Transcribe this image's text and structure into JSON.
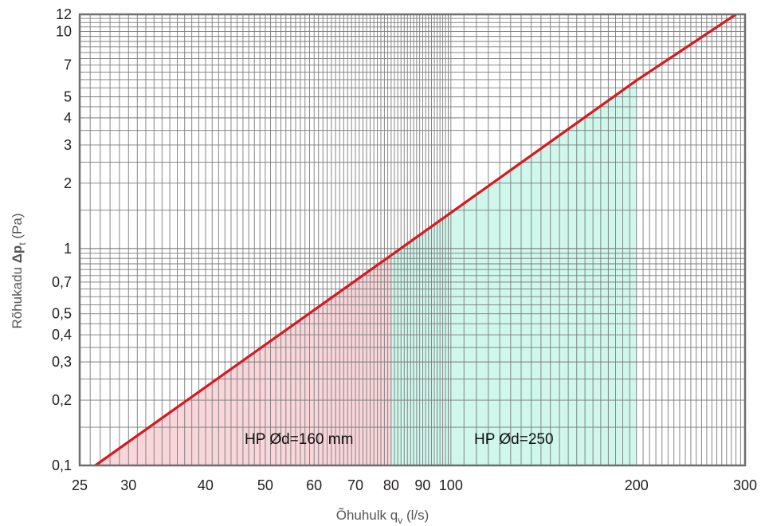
{
  "chart_data": {
    "type": "line",
    "xlabel": "Õhuhulk q",
    "xlabel_sub": "v",
    "xlabel_unit": " (l/s)",
    "ylabel_pre": "Rõhukadu ",
    "ylabel_delta": "Δp",
    "ylabel_sub": "t",
    "ylabel_unit": " (Pa)",
    "x_scale": "log",
    "y_scale": "log",
    "xlim": [
      25,
      300
    ],
    "ylim": [
      0.1,
      12
    ],
    "grid": true,
    "x_ticks": [
      {
        "value": 25,
        "label": "25"
      },
      {
        "value": 30,
        "label": "30"
      },
      {
        "value": 40,
        "label": "40"
      },
      {
        "value": 50,
        "label": "50"
      },
      {
        "value": 60,
        "label": "60"
      },
      {
        "value": 70,
        "label": "70"
      },
      {
        "value": 80,
        "label": "80"
      },
      {
        "value": 90,
        "label": "90"
      },
      {
        "value": 100,
        "label": "100"
      },
      {
        "value": 200,
        "label": "200"
      },
      {
        "value": 300,
        "label": "300"
      }
    ],
    "y_ticks": [
      {
        "value": 0.1,
        "label": "0,1"
      },
      {
        "value": 0.2,
        "label": "0,2"
      },
      {
        "value": 0.3,
        "label": "0,3"
      },
      {
        "value": 0.4,
        "label": "0,4"
      },
      {
        "value": 0.5,
        "label": "0,5"
      },
      {
        "value": 0.7,
        "label": "0,7"
      },
      {
        "value": 1,
        "label": "1"
      },
      {
        "value": 2,
        "label": "2"
      },
      {
        "value": 3,
        "label": "3"
      },
      {
        "value": 4,
        "label": "4"
      },
      {
        "value": 5,
        "label": "5"
      },
      {
        "value": 7,
        "label": "7"
      },
      {
        "value": 10,
        "label": "10"
      },
      {
        "value": 12,
        "label": "12"
      }
    ],
    "series": [
      {
        "color": "#d71920",
        "x": [
          26.5,
          80,
          200,
          290
        ],
        "y": [
          0.1,
          0.93,
          5.95,
          12.0
        ]
      }
    ],
    "regions": [
      {
        "label": "HP Ød=160 mm",
        "x_range": [
          26.5,
          80
        ],
        "color": "#f8d6da"
      },
      {
        "label": "HP Ød=250",
        "x_range": [
          80,
          200
        ],
        "color": "#cff7ec"
      }
    ]
  }
}
